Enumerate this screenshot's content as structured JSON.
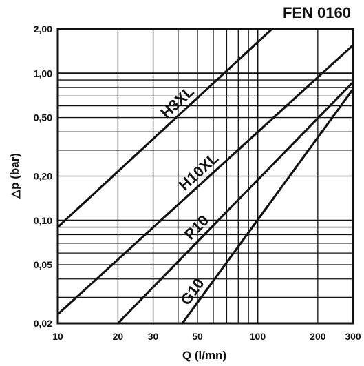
{
  "chart_data": {
    "type": "line",
    "title": "FEN 0160",
    "xlabel": "Q (l/mn)",
    "ylabel": "△p (bar)",
    "x_scale": "log",
    "y_scale": "log",
    "xlim": [
      10,
      300
    ],
    "ylim": [
      0.02,
      2.0
    ],
    "grid": true,
    "legend": "none",
    "x_ticks": [
      10,
      20,
      30,
      50,
      100,
      200,
      300
    ],
    "x_tick_labels": [
      "10",
      "20",
      "30",
      "50",
      "100",
      "200",
      "300"
    ],
    "y_ticks": [
      0.02,
      0.05,
      0.1,
      0.2,
      0.5,
      1.0,
      2.0
    ],
    "y_tick_labels": [
      "0,02",
      "0,05",
      "0,10",
      "0,20",
      "0,50",
      "1,00",
      "2,00"
    ],
    "series": [
      {
        "name": "H3XL",
        "x": [
          10,
          118
        ],
        "y": [
          0.09,
          2.0
        ]
      },
      {
        "name": "H10XL",
        "x": [
          10,
          300
        ],
        "y": [
          0.023,
          1.55
        ]
      },
      {
        "name": "P10",
        "x": [
          20,
          300
        ],
        "y": [
          0.02,
          0.87
        ]
      },
      {
        "name": "G10",
        "x": [
          42,
          300
        ],
        "y": [
          0.02,
          0.78
        ]
      }
    ]
  },
  "line_color": "#111111",
  "grid_color": "#111111"
}
